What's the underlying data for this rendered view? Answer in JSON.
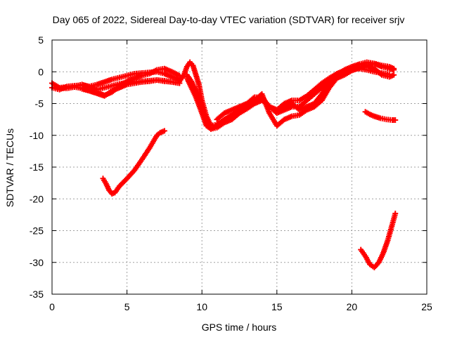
{
  "chart_data": {
    "type": "scatter",
    "title": "Day 065 of 2022, Sidereal Day-to-day VTEC variation (SDTVAR) for receiver srjv",
    "xlabel": "GPS time / hours",
    "ylabel": "SDTVAR / TECUs",
    "xlim": [
      0,
      25
    ],
    "ylim": [
      -35,
      5
    ],
    "xticks": [
      0,
      5,
      10,
      15,
      20,
      25
    ],
    "yticks": [
      -35,
      -30,
      -25,
      -20,
      -15,
      -10,
      -5,
      0,
      5
    ],
    "xtick_labels": [
      "0",
      "5",
      "10",
      "15",
      "20",
      "25"
    ],
    "ytick_labels": [
      "-35",
      "-30",
      "-25",
      "-20",
      "-15",
      "-10",
      "-5",
      "0",
      "5"
    ],
    "grid": true,
    "legend": "none",
    "marker": "plus",
    "color": "#ff0000",
    "series": [
      {
        "x": [
          0.0,
          0.5,
          1.0,
          1.5,
          2.0,
          2.5,
          3.0,
          3.5,
          4.0,
          4.5,
          5.0,
          5.5,
          6.0,
          6.5,
          7.0,
          7.5,
          8.0,
          8.5
        ],
        "values": [
          -2.5,
          -2.8,
          -2.3,
          -2.2,
          -2.1,
          -2.3,
          -2.0,
          -1.6,
          -1.2,
          -0.9,
          -0.6,
          -0.3,
          -0.2,
          -0.1,
          0.0,
          -0.3,
          -0.8,
          -1.2
        ]
      },
      {
        "x": [
          0.0,
          0.5,
          1.0,
          1.5,
          2.0,
          2.5,
          3.0,
          3.5,
          4.0,
          4.5,
          5.0,
          5.5,
          6.0,
          6.5,
          7.0,
          7.5,
          8.0,
          8.5
        ],
        "values": [
          -1.8,
          -2.5,
          -2.4,
          -2.3,
          -2.0,
          -2.4,
          -2.8,
          -2.5,
          -2.2,
          -1.9,
          -1.7,
          -1.6,
          -1.5,
          -1.4,
          -1.3,
          -1.5,
          -1.6,
          -1.8
        ]
      },
      {
        "x": [
          0.5,
          1.0,
          1.5,
          2.0,
          2.5,
          3.0,
          3.5,
          4.0,
          4.5,
          5.0,
          5.5,
          6.0,
          6.5,
          7.0,
          7.5,
          8.0,
          8.5
        ],
        "values": [
          -2.6,
          -2.6,
          -2.4,
          -2.6,
          -3.0,
          -3.3,
          -3.7,
          -3.2,
          -2.2,
          -1.5,
          -1.0,
          -0.6,
          -0.3,
          0.3,
          0.5,
          0.0,
          -0.6
        ]
      },
      {
        "x": [
          2.0,
          2.5,
          3.0,
          3.5,
          4.0,
          4.5,
          5.0,
          5.5,
          6.0,
          6.5,
          7.0,
          7.5,
          8.0,
          8.5
        ],
        "values": [
          -2.7,
          -3.0,
          -3.4,
          -3.8,
          -3.0,
          -2.5,
          -2.0,
          -1.8,
          -1.6,
          -1.5,
          -1.3,
          -1.4,
          -1.6,
          -1.8
        ]
      },
      {
        "x": [
          8.5,
          8.8,
          9.0,
          9.2,
          9.4,
          9.6,
          9.8,
          10.0,
          10.3,
          10.6,
          11.0,
          11.5,
          12.0,
          12.5,
          13.0,
          13.5,
          14.0,
          14.5,
          15.0,
          15.5,
          16.0,
          16.5,
          17.0,
          17.5,
          18.0,
          18.5,
          19.0,
          19.5,
          20.0,
          20.5,
          21.0,
          21.5,
          22.0,
          22.5,
          22.8
        ],
        "values": [
          -1.5,
          -0.5,
          0.8,
          1.5,
          1.0,
          -0.5,
          -2.0,
          -4.5,
          -7.0,
          -8.5,
          -8.3,
          -7.5,
          -7.0,
          -6.5,
          -5.8,
          -5.0,
          -4.0,
          -5.5,
          -6.5,
          -6.0,
          -5.5,
          -5.5,
          -4.5,
          -3.5,
          -2.5,
          -1.5,
          -0.5,
          0.3,
          0.8,
          1.2,
          1.5,
          1.3,
          0.8,
          0.5,
          0.3
        ]
      },
      {
        "x": [
          9.0,
          9.3,
          9.6,
          10.0,
          10.3,
          10.6,
          11.0,
          11.5,
          12.0,
          12.5,
          13.0,
          13.5,
          14.0,
          14.5,
          15.0,
          15.5,
          16.0,
          16.5,
          17.0,
          17.5,
          18.0,
          18.5,
          19.0,
          19.5,
          20.0,
          20.5,
          21.0,
          21.5,
          22.0,
          22.5,
          22.8
        ],
        "values": [
          -1.0,
          -2.5,
          -4.0,
          -6.5,
          -8.5,
          -9.0,
          -8.5,
          -7.5,
          -6.8,
          -6.0,
          -5.5,
          -4.5,
          -3.5,
          -6.5,
          -8.5,
          -7.5,
          -7.0,
          -6.8,
          -6.0,
          -5.5,
          -4.5,
          -2.5,
          -1.0,
          -0.3,
          0.3,
          0.8,
          1.0,
          0.5,
          -0.5,
          -0.8,
          -0.5
        ]
      },
      {
        "x": [
          9.0,
          9.3,
          9.6,
          10.0,
          10.3,
          10.6,
          11.0,
          11.5,
          12.0,
          12.5,
          13.0,
          13.5,
          14.0,
          14.5,
          15.0,
          15.5,
          16.0,
          16.5,
          17.0,
          17.5,
          18.0,
          18.5,
          19.0,
          19.5,
          20.0,
          20.5,
          21.0,
          21.5,
          22.0,
          22.5
        ],
        "values": [
          -0.5,
          -1.5,
          -3.0,
          -5.5,
          -8.0,
          -9.0,
          -8.8,
          -8.0,
          -7.5,
          -6.5,
          -5.8,
          -5.0,
          -4.5,
          -5.5,
          -6.0,
          -5.0,
          -4.5,
          -4.5,
          -3.8,
          -2.8,
          -1.8,
          -1.0,
          -0.3,
          0.2,
          0.5,
          0.5,
          0.3,
          0.0,
          -0.2,
          -0.4
        ]
      },
      {
        "x": [
          11.0,
          11.5,
          12.0,
          12.5,
          13.0,
          13.5,
          14.0,
          14.5,
          15.0,
          15.5,
          16.0,
          16.5,
          17.0,
          17.5,
          18.0,
          18.5,
          19.0,
          19.5,
          20.0,
          20.5,
          21.0,
          21.5,
          22.0,
          22.5,
          22.8
        ],
        "values": [
          -7.5,
          -6.5,
          -6.0,
          -5.5,
          -5.0,
          -4.0,
          -4.0,
          -5.5,
          -6.0,
          -5.5,
          -5.0,
          -6.0,
          -5.5,
          -5.0,
          -3.5,
          -2.0,
          -1.0,
          -0.5,
          0.2,
          0.6,
          1.0,
          1.3,
          1.0,
          0.8,
          0.5
        ]
      },
      {
        "x": [
          3.4,
          3.6,
          3.8,
          4.0,
          4.2,
          4.5,
          5.0,
          5.5,
          6.0,
          6.5,
          7.0,
          7.2,
          7.5
        ],
        "values": [
          -16.8,
          -17.6,
          -18.6,
          -19.2,
          -19.0,
          -18.0,
          -16.8,
          -15.5,
          -13.8,
          -12.0,
          -10.0,
          -9.6,
          -9.3
        ]
      },
      {
        "x": [
          20.9,
          21.2,
          21.5,
          21.9,
          22.3,
          22.7,
          22.9
        ],
        "values": [
          -6.3,
          -6.7,
          -7.0,
          -7.3,
          -7.5,
          -7.6,
          -7.6
        ]
      },
      {
        "x": [
          20.6,
          20.9,
          21.2,
          21.5,
          21.8,
          22.1,
          22.4,
          22.7,
          22.9
        ],
        "values": [
          -28.0,
          -29.0,
          -30.3,
          -30.8,
          -30.0,
          -28.5,
          -26.5,
          -24.0,
          -22.3
        ]
      }
    ]
  }
}
